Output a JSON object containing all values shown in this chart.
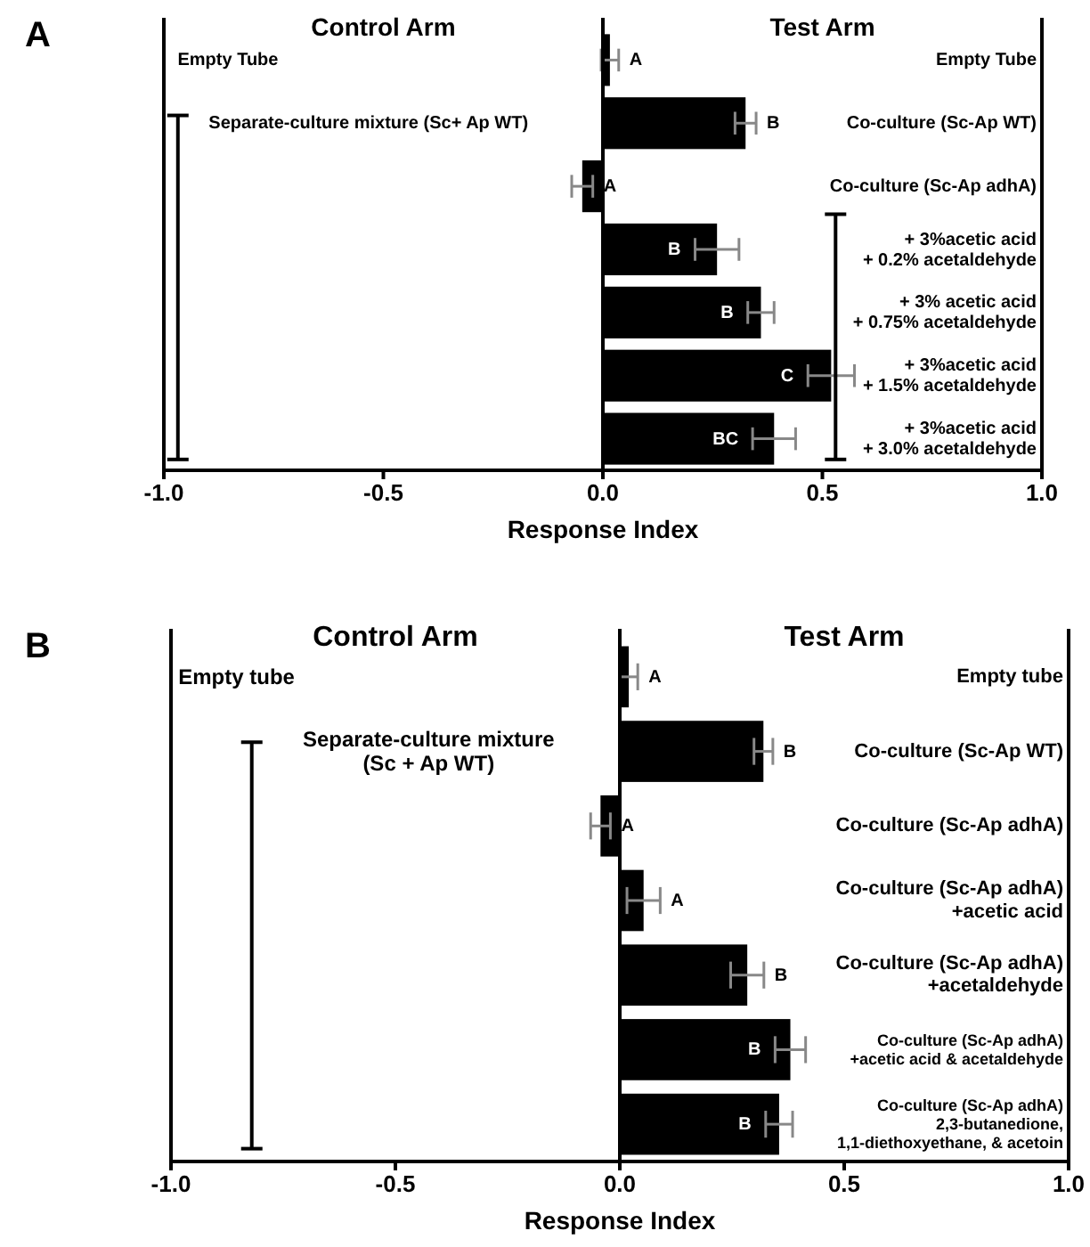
{
  "chart_data": [
    {
      "type": "bar",
      "orientation": "horizontal",
      "title": "A",
      "xlabel": "Response Index",
      "color": "#000000",
      "categories": [
        "Empty Tube",
        "Co-culture (Sc-Ap WT)",
        "Co-culture (Sc-Ap adhA)",
        "+ 3%acetic acid\n+ 0.2% acetaldehyde",
        "+ 3% acetic acid\n+ 0.75% acetaldehyde",
        "+ 3%acetic acid\n+ 1.5% acetaldehyde",
        "+ 3%acetic acid\n+ 3.0% acetaldehyde"
      ],
      "values": [
        0.016,
        0.325,
        -0.047,
        0.26,
        0.36,
        0.52,
        0.39
      ],
      "errors": [
        0.02,
        0.024,
        0.024,
        0.05,
        0.03,
        0.053,
        0.049
      ],
      "xlim": [
        -1,
        1
      ],
      "xticks": [
        {
          "value": -1,
          "label": "-1.0"
        },
        {
          "value": -0.5,
          "label": "-0.5"
        },
        {
          "value": 0,
          "label": "0.0"
        },
        {
          "value": 0.5,
          "label": "0.5"
        },
        {
          "value": 1,
          "label": "1.0"
        }
      ],
      "ref_lines": [
        {
          "axis": "x",
          "value": -0.968,
          "color": "#000000"
        },
        {
          "axis": "x",
          "value": 0.53,
          "color": "#000000"
        }
      ],
      "annotations": [
        "Control Arm",
        "Test Arm",
        "Empty Tube",
        "Separate-culture mixture (Sc+ Ap WT)",
        "A",
        "B",
        "A",
        "B",
        "B",
        "C",
        "BC"
      ]
    },
    {
      "type": "bar",
      "orientation": "horizontal",
      "title": "B",
      "xlabel": "Response Index",
      "color": "#000000",
      "categories": [
        "Empty tube",
        "Co-culture (Sc-Ap WT)",
        "Co-culture (Sc-Ap adhA)",
        "Co-culture (Sc-Ap adhA)\n+acetic acid",
        "Co-culture  (Sc-Ap adhA)\n+acetaldehyde",
        "Co-culture (Sc-Ap adhA)\n+acetic acid & acetaldehyde",
        "Co-culture (Sc-Ap adhA)\n2,3-butanedione,\n1,1-diethoxyethane, & acetoin"
      ],
      "values": [
        0.02,
        0.32,
        -0.043,
        0.053,
        0.284,
        0.38,
        0.355
      ],
      "errors": [
        0.02,
        0.021,
        0.022,
        0.037,
        0.037,
        0.034,
        0.03
      ],
      "xlim": [
        -1,
        1
      ],
      "xticks": [
        {
          "value": -1,
          "label": "-1.0"
        },
        {
          "value": -0.5,
          "label": "-0.5"
        },
        {
          "value": 0,
          "label": "0.0"
        },
        {
          "value": 0.5,
          "label": "0.5"
        },
        {
          "value": 1,
          "label": "1.0"
        }
      ],
      "ref_lines": [
        {
          "axis": "x",
          "value": -0.82,
          "color": "#000000"
        }
      ],
      "annotations": [
        "Control Arm",
        "Test Arm",
        "Empty tube",
        "Separate-culture mixture\n(Sc + Ap WT)",
        "A",
        "B",
        "A",
        "A",
        "B",
        "B",
        "B"
      ]
    }
  ]
}
